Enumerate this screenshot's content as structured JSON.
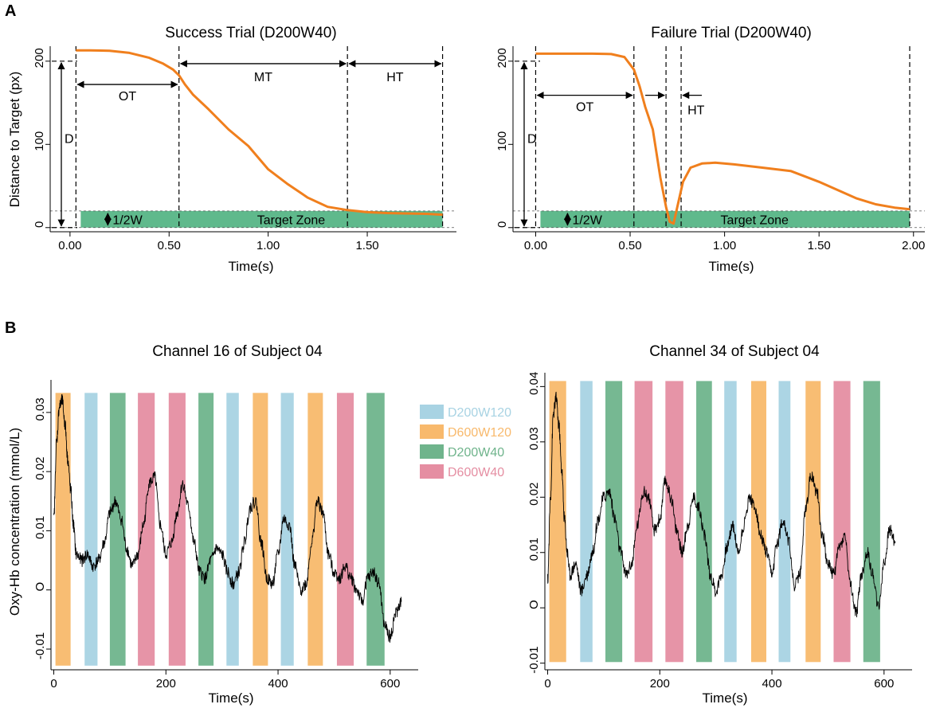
{
  "panel_labels": {
    "a": "A",
    "b": "B"
  },
  "colors": {
    "trace": "#f07f1d",
    "target_zone": "#5fb98c",
    "D200W120": "#a8d3e3",
    "D600W120": "#f8b96c",
    "D200W40": "#6fb48c",
    "D600W40": "#e58ea2",
    "signal": "#000000"
  },
  "chart_data": [
    {
      "id": "success",
      "type": "line",
      "title": "Success Trial (D200W40)",
      "xlabel": "Time(s)",
      "ylabel": "Distance to Target (px)",
      "xlim": [
        -0.1,
        1.95
      ],
      "ylim": [
        -5,
        218
      ],
      "xticks": [
        0,
        0.5,
        1.0,
        1.5
      ],
      "xtick_labels": [
        "0.00",
        "0.50",
        "1.00",
        "1.50"
      ],
      "yticks": [
        0,
        100,
        200
      ],
      "ytick_labels": [
        "0",
        "100",
        "200"
      ],
      "x": [
        0.03,
        0.1,
        0.2,
        0.3,
        0.4,
        0.47,
        0.52,
        0.55,
        0.58,
        0.62,
        0.7,
        0.8,
        0.9,
        1.0,
        1.1,
        1.2,
        1.3,
        1.4,
        1.5,
        1.6,
        1.7,
        1.8,
        1.88
      ],
      "y": [
        213,
        213,
        212.5,
        210,
        204,
        197,
        190,
        183,
        172,
        160,
        142,
        118,
        98,
        70,
        52,
        36,
        25,
        21,
        18.5,
        17.5,
        17,
        16.5,
        15.5
      ],
      "vlines": [
        0.03,
        0.55,
        1.4,
        1.88
      ],
      "target_zone": {
        "x0": 0.03,
        "x1": 1.88,
        "y0": 0,
        "y1": 20,
        "label": "Target Zone"
      },
      "d_level": 200,
      "annotations": {
        "d": "D",
        "half_w": "1/2W",
        "ot": "OT",
        "mt": "MT",
        "ht": "HT"
      }
    },
    {
      "id": "failure",
      "type": "line",
      "title": "Failure Trial (D200W40)",
      "xlabel": "Time(s)",
      "ylabel": "",
      "xlim": [
        -0.12,
        2.06
      ],
      "ylim": [
        -5,
        218
      ],
      "xticks": [
        0,
        0.5,
        1.0,
        1.5,
        2.0
      ],
      "xtick_labels": [
        "0.00",
        "0.50",
        "1.00",
        "1.50",
        "2.00"
      ],
      "yticks": [
        0,
        100,
        200
      ],
      "ytick_labels": [
        "0",
        "100",
        "200"
      ],
      "x": [
        0,
        0.1,
        0.2,
        0.3,
        0.4,
        0.47,
        0.52,
        0.55,
        0.58,
        0.62,
        0.66,
        0.69,
        0.71,
        0.73,
        0.75,
        0.78,
        0.82,
        0.88,
        0.95,
        1.05,
        1.2,
        1.35,
        1.5,
        1.6,
        1.7,
        1.8,
        1.9,
        1.98
      ],
      "y": [
        209,
        209,
        209,
        209,
        208.5,
        205,
        190,
        170,
        145,
        118,
        60,
        25,
        7,
        5,
        25,
        55,
        72,
        77,
        78,
        76,
        72,
        68,
        55,
        45,
        35,
        28,
        24,
        22
      ],
      "vlines": [
        0,
        0.52,
        0.69,
        0.77,
        1.98
      ],
      "target_zone": {
        "x0": 0,
        "x1": 1.98,
        "y0": 0,
        "y1": 20,
        "label": "Target Zone"
      },
      "d_level": 200,
      "annotations": {
        "d": "D",
        "half_w": "1/2W",
        "ot": "OT",
        "ht": "HT"
      }
    },
    {
      "id": "ch16",
      "type": "line",
      "title": "Channel 16 of Subject 04",
      "xlabel": "Time(s)",
      "ylabel": "Oxy-Hb concentration (mmol/L)",
      "xlim": [
        -5,
        650
      ],
      "ylim": [
        -0.0135,
        0.0355
      ],
      "xticks": [
        0,
        200,
        400,
        600
      ],
      "xtick_labels": [
        "0",
        "200",
        "400",
        "600"
      ],
      "yticks": [
        -0.01,
        0,
        0.01,
        0.02,
        0.03
      ],
      "ytick_labels": [
        "-0.01",
        "O",
        "0.01",
        "0.02",
        "0.03"
      ],
      "band_top": 0.0333,
      "band_bottom": -0.0128,
      "bands": [
        {
          "start": 3,
          "end": 30,
          "cond": "D600W120"
        },
        {
          "start": 55,
          "end": 78,
          "cond": "D200W120"
        },
        {
          "start": 100,
          "end": 128,
          "cond": "D200W40"
        },
        {
          "start": 150,
          "end": 180,
          "cond": "D600W40"
        },
        {
          "start": 205,
          "end": 235,
          "cond": "D600W40"
        },
        {
          "start": 258,
          "end": 285,
          "cond": "D200W40"
        },
        {
          "start": 308,
          "end": 330,
          "cond": "D200W120"
        },
        {
          "start": 355,
          "end": 382,
          "cond": "D600W120"
        },
        {
          "start": 405,
          "end": 428,
          "cond": "D200W120"
        },
        {
          "start": 453,
          "end": 480,
          "cond": "D600W120"
        },
        {
          "start": 505,
          "end": 535,
          "cond": "D600W40"
        },
        {
          "start": 558,
          "end": 590,
          "cond": "D200W40"
        }
      ],
      "signal_x": [
        0,
        5,
        10,
        15,
        20,
        25,
        30,
        35,
        40,
        50,
        60,
        70,
        80,
        90,
        100,
        110,
        120,
        130,
        140,
        150,
        160,
        170,
        180,
        190,
        200,
        210,
        220,
        230,
        240,
        250,
        260,
        270,
        280,
        290,
        300,
        310,
        320,
        330,
        340,
        350,
        360,
        370,
        380,
        390,
        400,
        410,
        420,
        430,
        440,
        450,
        460,
        470,
        480,
        490,
        500,
        510,
        520,
        530,
        540,
        550,
        560,
        570,
        580,
        590,
        600,
        610,
        620
      ],
      "signal_y": [
        0.012,
        0.025,
        0.031,
        0.032,
        0.028,
        0.022,
        0.017,
        0.011,
        0.006,
        0.005,
        0.006,
        0.004,
        0.005,
        0.008,
        0.013,
        0.015,
        0.012,
        0.007,
        0.004,
        0.006,
        0.011,
        0.018,
        0.019,
        0.011,
        0.006,
        0.008,
        0.013,
        0.018,
        0.014,
        0.008,
        0.003,
        0.002,
        0.005,
        0.007,
        0.006,
        0.003,
        0.001,
        0.003,
        0.008,
        0.014,
        0.015,
        0.008,
        0.002,
        0.001,
        0.006,
        0.012,
        0.011,
        0.004,
        0.0,
        0.001,
        0.008,
        0.015,
        0.013,
        0.006,
        0.003,
        0.002,
        0.004,
        0.002,
        0.0,
        -0.002,
        0.002,
        0.003,
        0.001,
        -0.006,
        -0.008,
        -0.004,
        -0.002
      ]
    },
    {
      "id": "ch34",
      "type": "line",
      "title": "Channel 34 of Subject 04",
      "xlabel": "Time(s)",
      "ylabel": "",
      "xlim": [
        -5,
        650
      ],
      "ylim": [
        -0.0112,
        0.0425
      ],
      "xticks": [
        0,
        200,
        400,
        600
      ],
      "xtick_labels": [
        "0",
        "200",
        "400",
        "600"
      ],
      "yticks": [
        -0.01,
        0,
        0.01,
        0.02,
        0.03,
        0.04
      ],
      "ytick_labels": [
        "-0.01",
        "O",
        "0.01",
        "0.02",
        "0.03",
        "0.04"
      ],
      "band_top": 0.041,
      "band_bottom": -0.0098,
      "bands": [
        {
          "start": 3,
          "end": 33,
          "cond": "D600W120"
        },
        {
          "start": 58,
          "end": 80,
          "cond": "D200W120"
        },
        {
          "start": 103,
          "end": 133,
          "cond": "D200W40"
        },
        {
          "start": 155,
          "end": 187,
          "cond": "D600W40"
        },
        {
          "start": 210,
          "end": 242,
          "cond": "D600W40"
        },
        {
          "start": 265,
          "end": 293,
          "cond": "D200W40"
        },
        {
          "start": 315,
          "end": 337,
          "cond": "D200W120"
        },
        {
          "start": 363,
          "end": 390,
          "cond": "D600W120"
        },
        {
          "start": 412,
          "end": 433,
          "cond": "D200W120"
        },
        {
          "start": 460,
          "end": 487,
          "cond": "D600W120"
        },
        {
          "start": 510,
          "end": 540,
          "cond": "D600W40"
        },
        {
          "start": 563,
          "end": 593,
          "cond": "D200W40"
        }
      ],
      "signal_x": [
        0,
        5,
        10,
        15,
        20,
        25,
        30,
        35,
        40,
        50,
        60,
        70,
        80,
        90,
        100,
        110,
        120,
        130,
        140,
        150,
        160,
        170,
        180,
        190,
        200,
        210,
        220,
        230,
        240,
        250,
        260,
        270,
        280,
        290,
        300,
        310,
        320,
        330,
        340,
        350,
        360,
        370,
        380,
        390,
        400,
        410,
        420,
        430,
        440,
        450,
        460,
        470,
        480,
        490,
        500,
        510,
        520,
        530,
        540,
        550,
        560,
        570,
        580,
        590,
        600,
        610,
        620
      ],
      "signal_y": [
        0.005,
        0.02,
        0.035,
        0.038,
        0.033,
        0.025,
        0.016,
        0.01,
        0.006,
        0.008,
        0.003,
        0.006,
        0.01,
        0.016,
        0.02,
        0.021,
        0.016,
        0.01,
        0.006,
        0.008,
        0.015,
        0.021,
        0.02,
        0.014,
        0.016,
        0.023,
        0.02,
        0.014,
        0.01,
        0.015,
        0.02,
        0.018,
        0.013,
        0.006,
        0.003,
        0.006,
        0.011,
        0.015,
        0.01,
        0.015,
        0.02,
        0.018,
        0.013,
        0.01,
        0.006,
        0.012,
        0.016,
        0.012,
        0.004,
        0.006,
        0.018,
        0.024,
        0.021,
        0.013,
        0.008,
        0.006,
        0.011,
        0.013,
        0.004,
        -0.001,
        0.006,
        0.01,
        0.006,
        0.0,
        0.008,
        0.014,
        0.012
      ]
    }
  ],
  "legend": [
    {
      "label": "D200W120",
      "cond": "D200W120"
    },
    {
      "label": "D600W120",
      "cond": "D600W120"
    },
    {
      "label": "D200W40",
      "cond": "D200W40"
    },
    {
      "label": "D600W40",
      "cond": "D600W40"
    }
  ]
}
